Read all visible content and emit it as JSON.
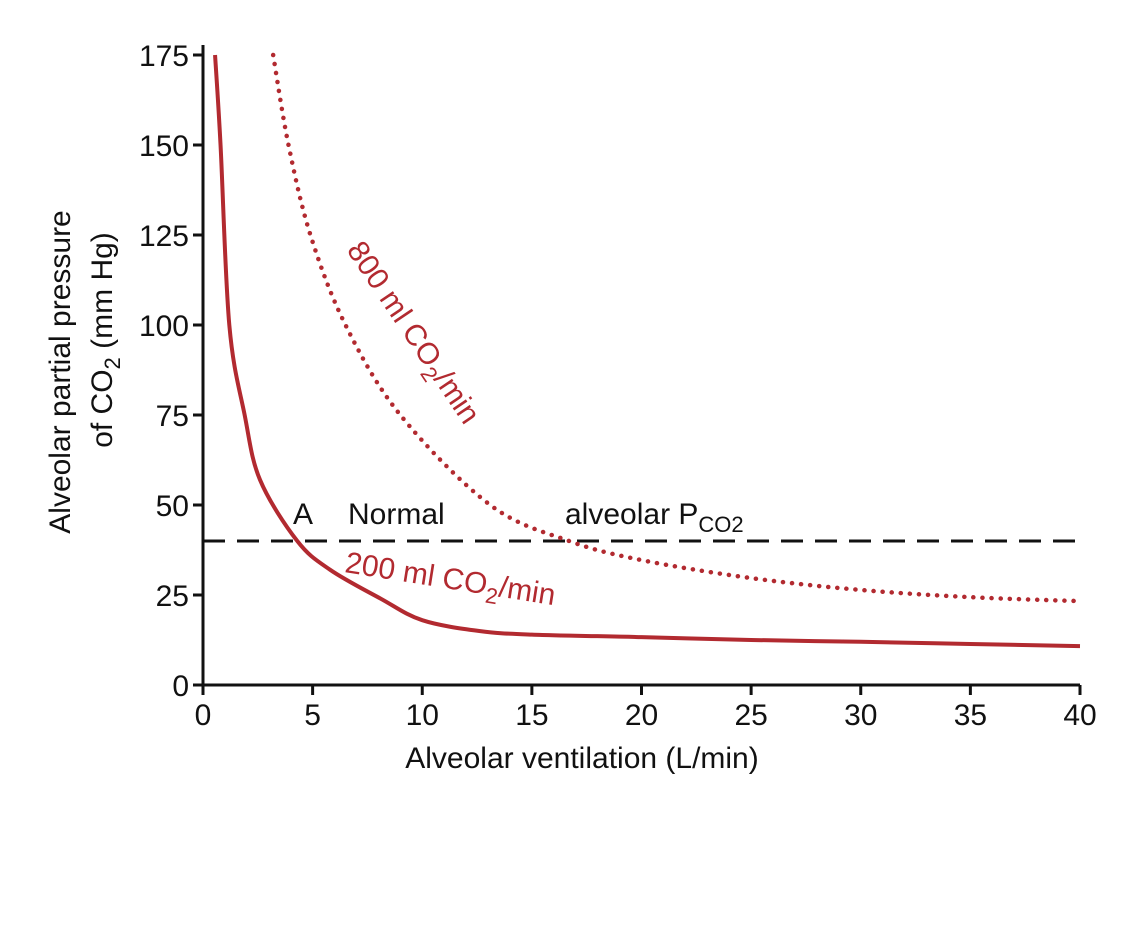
{
  "chart_data": {
    "type": "line",
    "x_label": "Alveolar ventilation (L/min)",
    "y_label": {
      "line1": "Alveolar partial pressure",
      "line2": [
        "of CO",
        "2",
        " (mm Hg)"
      ]
    },
    "xlim": [
      0,
      40
    ],
    "ylim": [
      0,
      175
    ],
    "xticks": [
      0,
      5,
      10,
      15,
      20,
      25,
      30,
      35,
      40
    ],
    "yticks": [
      0,
      25,
      50,
      75,
      100,
      125,
      150,
      175
    ],
    "series": [
      {
        "color": "#b22a30",
        "style": "solid",
        "x": [
          0.55,
          0.8,
          1.2,
          1.9,
          2.6,
          4.3,
          5.8,
          8.1,
          10,
          12.6,
          15,
          20,
          25,
          30,
          35,
          40
        ],
        "values": [
          175,
          150,
          100,
          75,
          57,
          40,
          32,
          24,
          18,
          15,
          14,
          13.3,
          12.5,
          12,
          11.4,
          10.8
        ]
      },
      {
        "color": "#b22a30",
        "style": "dotted",
        "x": [
          3.2,
          3.9,
          4.9,
          6.5,
          9,
          13.1,
          16.7,
          20,
          25,
          30,
          35,
          40
        ],
        "values": [
          175,
          150,
          125,
          100,
          75,
          50,
          40,
          34.7,
          29.7,
          26.4,
          24.4,
          23.3
        ]
      }
    ],
    "reference_line": {
      "value": 40,
      "color": "#111111"
    },
    "annotations": [
      {
        "parts": [
          "800 ml CO",
          "2",
          "/min"
        ]
      },
      {
        "parts": [
          "200 ml CO",
          "2",
          "/min"
        ]
      },
      {
        "parts": [
          "A"
        ]
      },
      {
        "parts": [
          "Normal"
        ]
      },
      {
        "parts": [
          "alveolar P",
          "CO2"
        ]
      }
    ]
  }
}
